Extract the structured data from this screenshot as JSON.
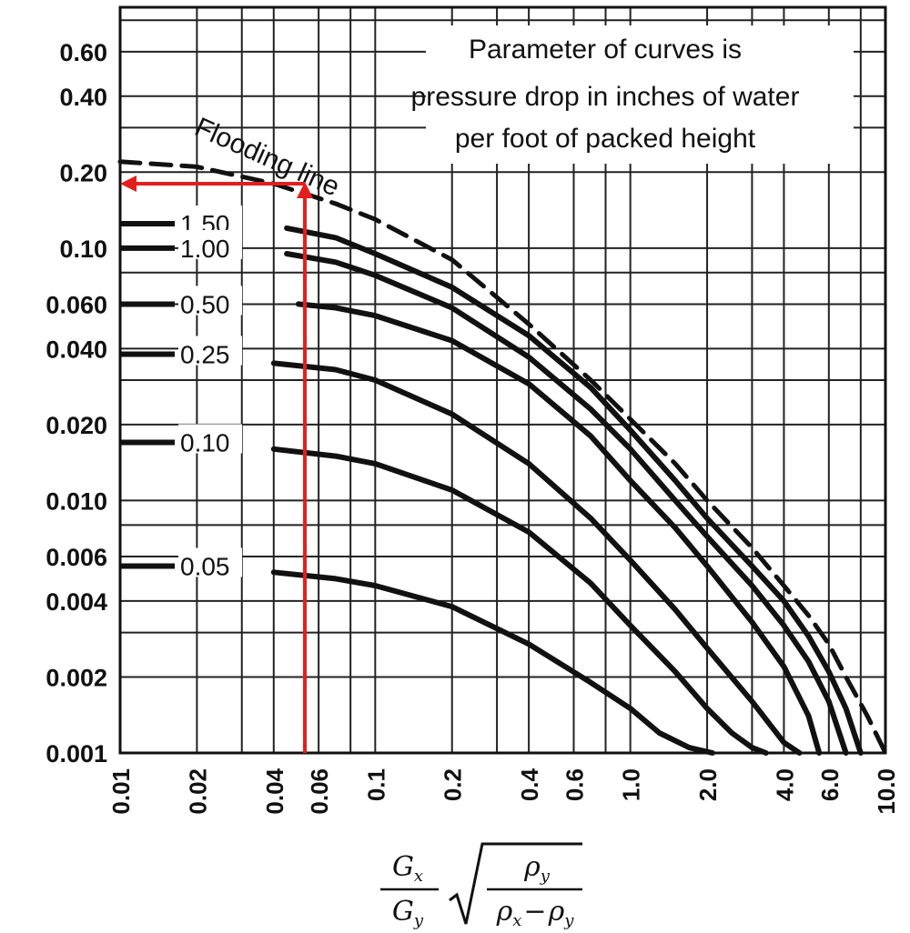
{
  "chart_data": {
    "type": "line",
    "x_scale": "log",
    "y_scale": "log",
    "xlim": [
      0.01,
      10.0
    ],
    "ylim": [
      0.001,
      0.9
    ],
    "grid": true,
    "x_ticks": [
      "0.01",
      "0.02",
      "0.04",
      "0.06",
      "0.1",
      "0.2",
      "0.4",
      "0.6",
      "1.0",
      "2.0",
      "4.0",
      "6.0",
      "10.0"
    ],
    "x_tick_values": [
      0.01,
      0.02,
      0.04,
      0.06,
      0.1,
      0.2,
      0.4,
      0.6,
      1.0,
      2.0,
      4.0,
      6.0,
      10.0
    ],
    "y_ticks": [
      "0.60",
      "0.40",
      "0.20",
      "0.10",
      "0.060",
      "0.040",
      "0.020",
      "0.010",
      "0.006",
      "0.004",
      "0.002",
      "0.001"
    ],
    "y_tick_values": [
      0.6,
      0.4,
      0.2,
      0.1,
      0.06,
      0.04,
      0.02,
      0.01,
      0.006,
      0.004,
      0.002,
      0.001
    ],
    "xlabel": {
      "num_left": "G",
      "num_left_sub": "x",
      "den_left": "G",
      "den_left_sub": "y",
      "num_right": "ρ",
      "num_right_sub": "y",
      "den_right_a": "ρ",
      "den_right_a_sub": "x",
      "den_right_minus": "−",
      "den_right_b": "ρ",
      "den_right_b_sub": "y"
    },
    "annotation_lines": [
      "Parameter of curves is",
      "pressure drop in inches of water",
      "per foot of packed height"
    ],
    "flooding_label": "Flooding line",
    "series": [
      {
        "label": "",
        "style": "dashed",
        "x": [
          0.01,
          0.02,
          0.04,
          0.07,
          0.1,
          0.2,
          0.4,
          0.7,
          1.0,
          1.5,
          2.0,
          3.0,
          4.0,
          5.0,
          6.0,
          7.0,
          8.5,
          10.0
        ],
        "y": [
          0.22,
          0.21,
          0.18,
          0.15,
          0.13,
          0.09,
          0.05,
          0.03,
          0.021,
          0.014,
          0.01,
          0.0065,
          0.0046,
          0.0035,
          0.0027,
          0.002,
          0.0014,
          0.001
        ]
      },
      {
        "label": "1.50",
        "style": "solid",
        "x": [
          0.045,
          0.07,
          0.1,
          0.2,
          0.4,
          0.7,
          1.0,
          1.5,
          2.0,
          3.0,
          4.0,
          5.0,
          6.0,
          7.0,
          8.0
        ],
        "y": [
          0.12,
          0.11,
          0.095,
          0.07,
          0.045,
          0.028,
          0.019,
          0.012,
          0.0085,
          0.0055,
          0.004,
          0.0029,
          0.0021,
          0.0015,
          0.001
        ]
      },
      {
        "label": "1.00",
        "style": "solid",
        "x": [
          0.045,
          0.07,
          0.1,
          0.2,
          0.4,
          0.7,
          1.0,
          1.5,
          2.0,
          3.0,
          4.0,
          5.0,
          6.0,
          7.0
        ],
        "y": [
          0.095,
          0.088,
          0.078,
          0.058,
          0.037,
          0.023,
          0.016,
          0.01,
          0.0072,
          0.0046,
          0.0032,
          0.0023,
          0.0016,
          0.001
        ]
      },
      {
        "label": "0.50",
        "style": "solid",
        "x": [
          0.05,
          0.07,
          0.1,
          0.2,
          0.4,
          0.7,
          1.0,
          1.5,
          2.0,
          3.0,
          4.0,
          5.0,
          5.5
        ],
        "y": [
          0.06,
          0.058,
          0.054,
          0.043,
          0.029,
          0.018,
          0.012,
          0.0078,
          0.0055,
          0.0033,
          0.0022,
          0.0014,
          0.001
        ]
      },
      {
        "label": "0.25",
        "style": "solid",
        "x": [
          0.04,
          0.07,
          0.1,
          0.2,
          0.4,
          0.7,
          1.0,
          1.5,
          2.0,
          3.0,
          4.0,
          4.6
        ],
        "y": [
          0.035,
          0.033,
          0.03,
          0.022,
          0.014,
          0.0085,
          0.0058,
          0.0037,
          0.0026,
          0.0016,
          0.0011,
          0.001
        ]
      },
      {
        "label": "0.10",
        "style": "solid",
        "x": [
          0.04,
          0.07,
          0.1,
          0.2,
          0.4,
          0.7,
          1.0,
          1.5,
          2.0,
          2.5,
          3.0,
          3.4
        ],
        "y": [
          0.016,
          0.015,
          0.014,
          0.011,
          0.0075,
          0.0047,
          0.0032,
          0.0021,
          0.0015,
          0.0012,
          0.00105,
          0.001
        ]
      },
      {
        "label": "0.05",
        "style": "solid",
        "x": [
          0.04,
          0.07,
          0.1,
          0.2,
          0.4,
          0.7,
          1.0,
          1.3,
          1.7,
          2.1
        ],
        "y": [
          0.0052,
          0.0049,
          0.0046,
          0.0038,
          0.0027,
          0.0019,
          0.0015,
          0.0012,
          0.00105,
          0.001
        ]
      }
    ],
    "stubs": [
      {
        "label": "1.50",
        "y": 0.125
      },
      {
        "label": "1.00",
        "y": 0.1
      },
      {
        "label": "0.50",
        "y": 0.06
      },
      {
        "label": "0.25",
        "y": 0.038
      },
      {
        "label": "0.10",
        "y": 0.017
      },
      {
        "label": "0.05",
        "y": 0.0055
      }
    ],
    "highlight": {
      "color": "#e41e1e",
      "x_value": 0.053,
      "y_value": 0.18
    }
  }
}
